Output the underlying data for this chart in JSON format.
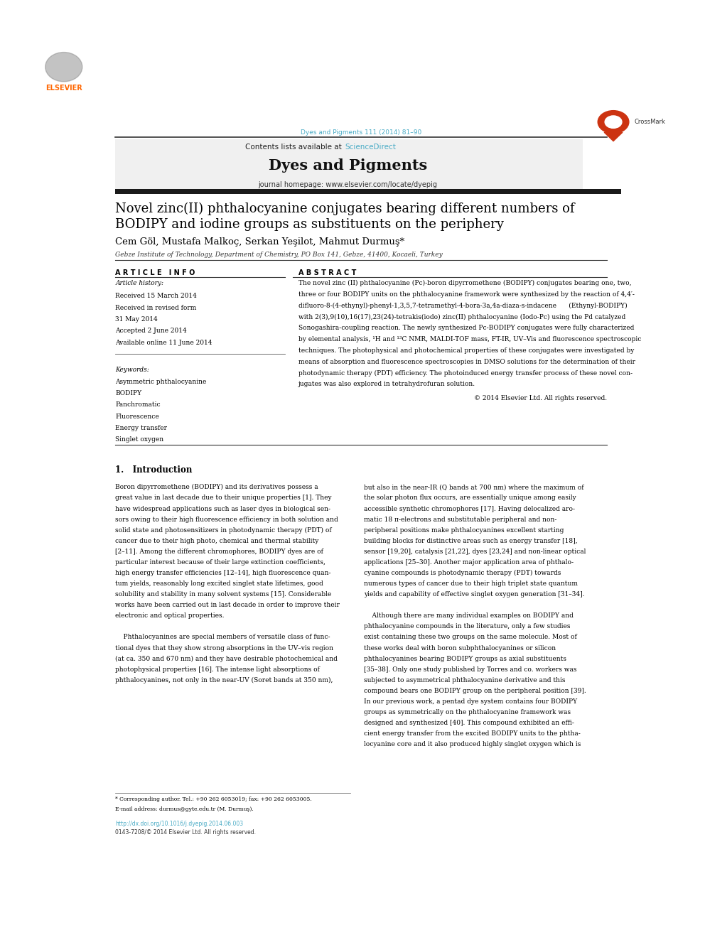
{
  "page_width": 9.92,
  "page_height": 13.23,
  "bg_color": "#ffffff",
  "journal_ref": "Dyes and Pigments 111 (2014) 81–90",
  "journal_ref_color": "#4bacc6",
  "header_bg": "#f0f0f0",
  "header_text1": "Contents lists available at ",
  "header_sciencedirect": "ScienceDirect",
  "header_sciencedirect_color": "#4bacc6",
  "journal_title": "Dyes and Pigments",
  "journal_homepage": "journal homepage: www.elsevier.com/locate/dyepig",
  "elsevier_color": "#ff6600",
  "black_bar_color": "#1a1a1a",
  "paper_title_line1": "Novel zinc(II) phthalocyanine conjugates bearing different numbers of",
  "paper_title_line2": "BODIPY and iodine groups as substituents on the periphery",
  "paper_title_color": "#000000",
  "authors": "Cem Göl, Mustafa Malkoç, Serkan Yeşilot, Mahmut Durmuş*",
  "affiliation": "Gebze Institute of Technology, Department of Chemistry, PO Box 141, Gebze, 41400, Kocaeli, Turkey",
  "article_info_header": "A R T I C L E   I N F O",
  "abstract_header": "A B S T R A C T",
  "article_history_label": "Article history:",
  "received1": "Received 15 March 2014",
  "received2": "Received in revised form",
  "received2b": "31 May 2014",
  "accepted": "Accepted 2 June 2014",
  "available": "Available online 11 June 2014",
  "keywords_label": "Keywords:",
  "keywords": [
    "Asymmetric phthalocyanine",
    "BODIPY",
    "Panchromatic",
    "Fluorescence",
    "Energy transfer",
    "Singlet oxygen"
  ],
  "copyright": "© 2014 Elsevier Ltd. All rights reserved.",
  "doi": "http://dx.doi.org/10.1016/j.dyepig.2014.06.003",
  "issn": "0143-7208/© 2014 Elsevier Ltd. All rights reserved.",
  "corresponding_note": "* Corresponding author. Tel.: +90 262 6053019; fax: +90 262 6053005.",
  "email_note": "E-mail address: durmus@gyte.edu.tr (M. Durmuş).",
  "section1_title": "1.   Introduction",
  "abs_lines": [
    "The novel zinc (II) phthalocyanine (Pc)-boron dipyrromethene (BODIPY) conjugates bearing one, two,",
    "three or four BODIPY units on the phthalocyanine framework were synthesized by the reaction of 4,4′-",
    "difluoro-8-(4-ethynyl)-phenyl-1,3,5,7-tetramethyl-4-bora-3a,4a-diaza-s-indacene      (Ethynyl-BODIPY)",
    "with 2(3),9(10),16(17),23(24)-tetrakis(iodo) zinc(II) phthalocyanine (Iodo-Pc) using the Pd catalyzed",
    "Sonogashira-coupling reaction. The newly synthesized Pc-BODIPY conjugates were fully characterized",
    "by elemental analysis, ¹H and ¹³C NMR, MALDI-TOF mass, FT-IR, UV–Vis and fluorescence spectroscopic",
    "techniques. The photophysical and photochemical properties of these conjugates were investigated by",
    "means of absorption and fluorescence spectroscopies in DMSO solutions for the determination of their",
    "photodynamic therapy (PDT) efficiency. The photoinduced energy transfer process of these novel con-",
    "jugates was also explored in tetrahydrofuran solution."
  ],
  "intro_left_lines": [
    "Boron dipyrromethene (BODIPY) and its derivatives possess a",
    "great value in last decade due to their unique properties [1]. They",
    "have widespread applications such as laser dyes in biological sen-",
    "sors owing to their high fluorescence efficiency in both solution and",
    "solid state and photosensitizers in photodynamic therapy (PDT) of",
    "cancer due to their high photo, chemical and thermal stability",
    "[2–11]. Among the different chromophores, BODIPY dyes are of",
    "particular interest because of their large extinction coefficients,",
    "high energy transfer efficiencies [12–14], high fluorescence quan-",
    "tum yields, reasonably long excited singlet state lifetimes, good",
    "solubility and stability in many solvent systems [15]. Considerable",
    "works have been carried out in last decade in order to improve their",
    "electronic and optical properties.",
    "",
    "    Phthalocyanines are special members of versatile class of func-",
    "tional dyes that they show strong absorptions in the UV–vis region",
    "(at ca. 350 and 670 nm) and they have desirable photochemical and",
    "photophysical properties [16]. The intense light absorptions of",
    "phthalocyanines, not only in the near-UV (Soret bands at 350 nm),"
  ],
  "intro_right_lines": [
    "but also in the near-IR (Q bands at 700 nm) where the maximum of",
    "the solar photon flux occurs, are essentially unique among easily",
    "accessible synthetic chromophores [17]. Having delocalized aro-",
    "matic 18 π-electrons and substitutable peripheral and non-",
    "peripheral positions make phthalocyanines excellent starting",
    "building blocks for distinctive areas such as energy transfer [18],",
    "sensor [19,20], catalysis [21,22], dyes [23,24] and non-linear optical",
    "applications [25–30]. Another major application area of phthalo-",
    "cyanine compounds is photodynamic therapy (PDT) towards",
    "numerous types of cancer due to their high triplet state quantum",
    "yields and capability of effective singlet oxygen generation [31–34].",
    "",
    "    Although there are many individual examples on BODIPY and",
    "phthalocyanine compounds in the literature, only a few studies",
    "exist containing these two groups on the same molecule. Most of",
    "these works deal with boron subphthalocyanines or silicon",
    "phthalocyanines bearing BODIPY groups as axial substituents",
    "[35–38]. Only one study published by Torres and co. workers was",
    "subjected to asymmetrical phthalocyanine derivative and this",
    "compound bears one BODIPY group on the peripheral position [39].",
    "In our previous work, a pentad dye system contains four BODIPY",
    "groups as symmetrically on the phthalocyanine framework was",
    "designed and synthesized [40]. This compound exhibited an effi-",
    "cient energy transfer from the excited BODIPY units to the phtha-",
    "locyanine core and it also produced highly singlet oxygen which is"
  ]
}
